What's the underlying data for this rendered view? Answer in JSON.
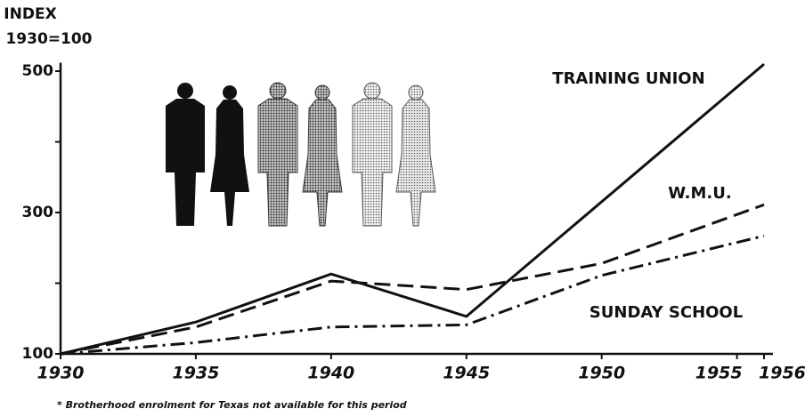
{
  "chart_data": {
    "type": "line",
    "y_label_lines": [
      "INDEX",
      "1930=100"
    ],
    "x": [
      1930,
      1935,
      1940,
      1945,
      1950,
      1956
    ],
    "series": [
      {
        "name": "TRAINING UNION",
        "color": "#111111",
        "dash": "solid",
        "values": [
          100,
          145,
          213,
          153,
          null,
          510
        ]
      },
      {
        "name": "W.M.U.",
        "color": "#111111",
        "dash": "dashed",
        "values": [
          100,
          138,
          203,
          191,
          228,
          311
        ]
      },
      {
        "name": "SUNDAY SCHOOL",
        "color": "#111111",
        "dash": "dashdot",
        "values": [
          100,
          116,
          138,
          141,
          211,
          267
        ]
      }
    ],
    "xlim": [
      1930,
      1956
    ],
    "xticks": [
      1930,
      1935,
      1940,
      1945,
      1950,
      1955,
      1956
    ],
    "ylim": [
      100,
      512
    ],
    "yticks": [
      100,
      300,
      500
    ],
    "y_minor_ticks": [
      200,
      400
    ],
    "footnote": "* Brotherhood enrolment for Texas not available for this period"
  }
}
